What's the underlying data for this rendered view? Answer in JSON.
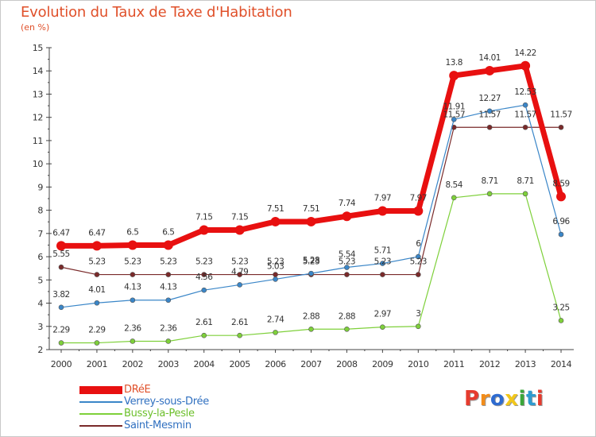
{
  "header": {
    "title": "Evolution du Taux de Taxe d'Habitation",
    "subtitle": "(en %)"
  },
  "logo": {
    "text": "Proxiti",
    "colors": [
      "#e63b2e",
      "#f28c1a",
      "#2e6bd0",
      "#f2c71a",
      "#3aa63a",
      "#2e9bd0",
      "#e63b2e"
    ]
  },
  "chart_data": {
    "type": "line",
    "title": "Evolution du Taux de Taxe d'Habitation",
    "ylabel": "(en %)",
    "xlabel": "",
    "ylim": [
      2,
      15
    ],
    "yticks": [
      "2",
      "3",
      "4",
      "5",
      "6",
      "7",
      "8",
      "9",
      "10",
      "11",
      "12",
      "13",
      "14",
      "15"
    ],
    "categories": [
      "2000",
      "2001",
      "2002",
      "2003",
      "2004",
      "2005",
      "2006",
      "2007",
      "2008",
      "2009",
      "2010",
      "2011",
      "2012",
      "2013",
      "2014"
    ],
    "series": [
      {
        "name": "DRéE",
        "color": "#e81010",
        "values": [
          6.47,
          6.47,
          6.5,
          6.5,
          7.15,
          7.15,
          7.51,
          7.51,
          7.74,
          7.97,
          7.97,
          13.8,
          14.01,
          14.22,
          8.59
        ],
        "labels": [
          "6.47",
          "6.47",
          "6.5",
          "6.5",
          "7.15",
          "7.15",
          "7.51",
          "7.51",
          "7.74",
          "7.97",
          "7.97",
          "13.8",
          "14.01",
          "14.22",
          "8.59"
        ]
      },
      {
        "name": "Verrey-sous-Drée",
        "color": "#3a86c8",
        "values": [
          3.82,
          4.01,
          4.13,
          4.13,
          4.56,
          4.79,
          5.03,
          5.28,
          5.54,
          5.71,
          6,
          11.91,
          12.27,
          12.53,
          6.96
        ],
        "labels": [
          "3.82",
          "4.01",
          "4.13",
          "4.13",
          "4.56",
          "4.79",
          "5.03",
          "5.28",
          "5.54",
          "5.71",
          "6",
          "11.91",
          "12.27",
          "12.53",
          "6.96"
        ]
      },
      {
        "name": "Bussy-la-Pesle",
        "color": "#7ed03a",
        "values": [
          2.29,
          2.29,
          2.36,
          2.36,
          2.61,
          2.61,
          2.74,
          2.88,
          2.88,
          2.97,
          3,
          8.54,
          8.71,
          8.71,
          3.25
        ],
        "labels": [
          "2.29",
          "2.29",
          "2.36",
          "2.36",
          "2.61",
          "2.61",
          "2.74",
          "2.88",
          "2.88",
          "2.97",
          "3",
          "8.54",
          "8.71",
          "8.71",
          "3.25"
        ]
      },
      {
        "name": "Saint-Mesmin",
        "color": "#7a2a2a",
        "values": [
          5.55,
          5.23,
          5.23,
          5.23,
          5.23,
          5.23,
          5.23,
          5.23,
          5.23,
          5.23,
          5.23,
          11.57,
          11.57,
          11.57,
          11.57
        ],
        "labels": [
          "5.55",
          "5.23",
          "5.23",
          "5.23",
          "5.23",
          "5.23",
          "5.23",
          "5.23",
          "5.23",
          "5.23",
          "5.23",
          "11.57",
          "11.57",
          "11.57",
          "11.57"
        ]
      }
    ],
    "legend": "bottom-left",
    "grid": false
  }
}
